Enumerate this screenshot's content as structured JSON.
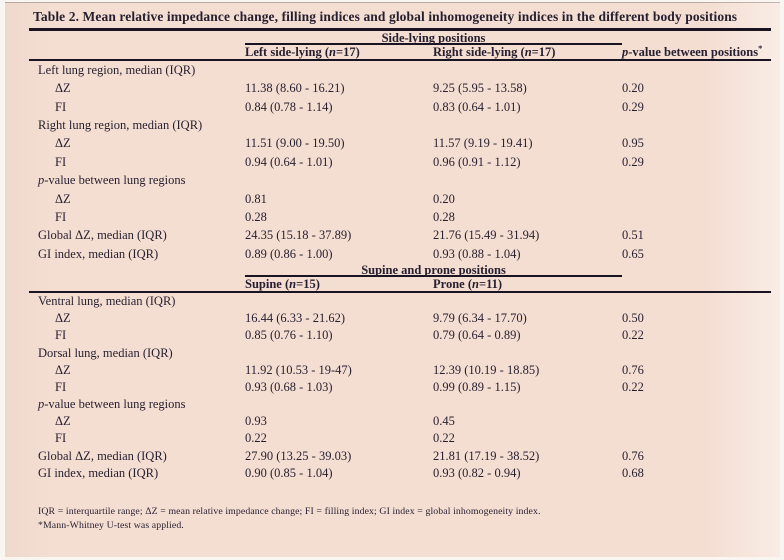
{
  "title": "Table 2. Mean relative impedance change, filling indices and global inhomogeneity indices in the different body positions",
  "pvalue_header": {
    "italic": "p",
    "rest": "-value between positions",
    "sup": "*"
  },
  "sections": [
    {
      "group_header": "Side-lying positions",
      "show_pvalue_header": true,
      "columns": [
        {
          "pre": "Left side-lying (",
          "n": "n",
          "post": "=17)"
        },
        {
          "pre": "Right side-lying (",
          "n": "n",
          "post": "=17)"
        }
      ],
      "rows": [
        {
          "label": "Left lung region, median (IQR)",
          "indent": false,
          "values": [
            "",
            "",
            ""
          ]
        },
        {
          "label": "ΔZ",
          "indent": true,
          "values": [
            "11.38 (8.60 - 16.21)",
            "9.25 (5.95 - 13.58)",
            "0.20"
          ]
        },
        {
          "label": "FI",
          "indent": true,
          "values": [
            "0.84 (0.78 - 1.14)",
            "0.83 (0.64 - 1.01)",
            "0.29"
          ]
        },
        {
          "label": "Right lung region, median (IQR)",
          "indent": false,
          "values": [
            "",
            "",
            ""
          ]
        },
        {
          "label": "ΔZ",
          "indent": true,
          "values": [
            "11.51 (9.00 - 19.50)",
            "11.57 (9.19 - 19.41)",
            "0.95"
          ]
        },
        {
          "label": "FI",
          "indent": true,
          "values": [
            "0.94 (0.64 - 1.01)",
            "0.96 (0.91 - 1.12)",
            "0.29"
          ]
        },
        {
          "label_italic": "p",
          "label": "-value between lung regions",
          "indent": false,
          "values": [
            "",
            "",
            ""
          ]
        },
        {
          "label": "ΔZ",
          "indent": true,
          "values": [
            "0.81",
            "0.20",
            ""
          ]
        },
        {
          "label": "FI",
          "indent": true,
          "values": [
            "0.28",
            "0.28",
            ""
          ]
        },
        {
          "label": "Global ΔZ, median (IQR)",
          "indent": false,
          "values": [
            "24.35 (15.18 - 37.89)",
            "21.76 (15.49 - 31.94)",
            "0.51"
          ]
        },
        {
          "label": "GI index, median (IQR)",
          "indent": false,
          "values": [
            "0.89 (0.86 - 1.00)",
            "0.93 (0.88 - 1.04)",
            "0.65"
          ]
        }
      ]
    },
    {
      "group_header": "Supine and prone positions",
      "show_pvalue_header": false,
      "columns": [
        {
          "pre": "Supine (",
          "n": "n",
          "post": "=15)"
        },
        {
          "pre": "Prone (",
          "n": "n",
          "post": "=11)"
        }
      ],
      "rows": [
        {
          "label": "Ventral lung, median (IQR)",
          "indent": false,
          "values": [
            "",
            "",
            ""
          ]
        },
        {
          "label": "ΔZ",
          "indent": true,
          "values": [
            "16.44 (6.33 - 21.62)",
            "9.79 (6.34 - 17.70)",
            "0.50"
          ]
        },
        {
          "label": "FI",
          "indent": true,
          "values": [
            "0.85 (0.76 - 1.10)",
            "0.79 (0.64 - 0.89)",
            "0.22"
          ]
        },
        {
          "label": "Dorsal lung, median (IQR)",
          "indent": false,
          "values": [
            "",
            "",
            ""
          ]
        },
        {
          "label": "ΔZ",
          "indent": true,
          "values": [
            "11.92 (10.53 - 19-47)",
            "12.39 (10.19 - 18.85)",
            "0.76"
          ]
        },
        {
          "label": "FI",
          "indent": true,
          "values": [
            "0.93 (0.68 - 1.03)",
            "0.99 (0.89 - 1.15)",
            "0.22"
          ]
        },
        {
          "label_italic": "p",
          "label": "-value between lung regions",
          "indent": false,
          "values": [
            "",
            "",
            ""
          ]
        },
        {
          "label": "ΔZ",
          "indent": true,
          "values": [
            "0.93",
            "0.45",
            ""
          ]
        },
        {
          "label": "FI",
          "indent": true,
          "values": [
            "0.22",
            "0.22",
            ""
          ]
        },
        {
          "label": "Global ΔZ, median (IQR)",
          "indent": false,
          "values": [
            "27.90 (13.25 - 39.03)",
            "21.81 (17.19 - 38.52)",
            "0.76"
          ]
        },
        {
          "label": "GI index, median (IQR)",
          "indent": false,
          "values": [
            "0.90 (0.85 - 1.04)",
            "0.93 (0.82 - 0.94)",
            "0.68"
          ]
        }
      ]
    }
  ],
  "footnotes": [
    "IQR = interquartile range; ΔZ = mean relative impedance change; FI = filling index; GI index = global inhomogeneity index.",
    "*Mann-Whitney U-test was applied."
  ],
  "colors": {
    "background": "#f4ddd1",
    "text": "#261f30",
    "rule": "#1a1322"
  }
}
